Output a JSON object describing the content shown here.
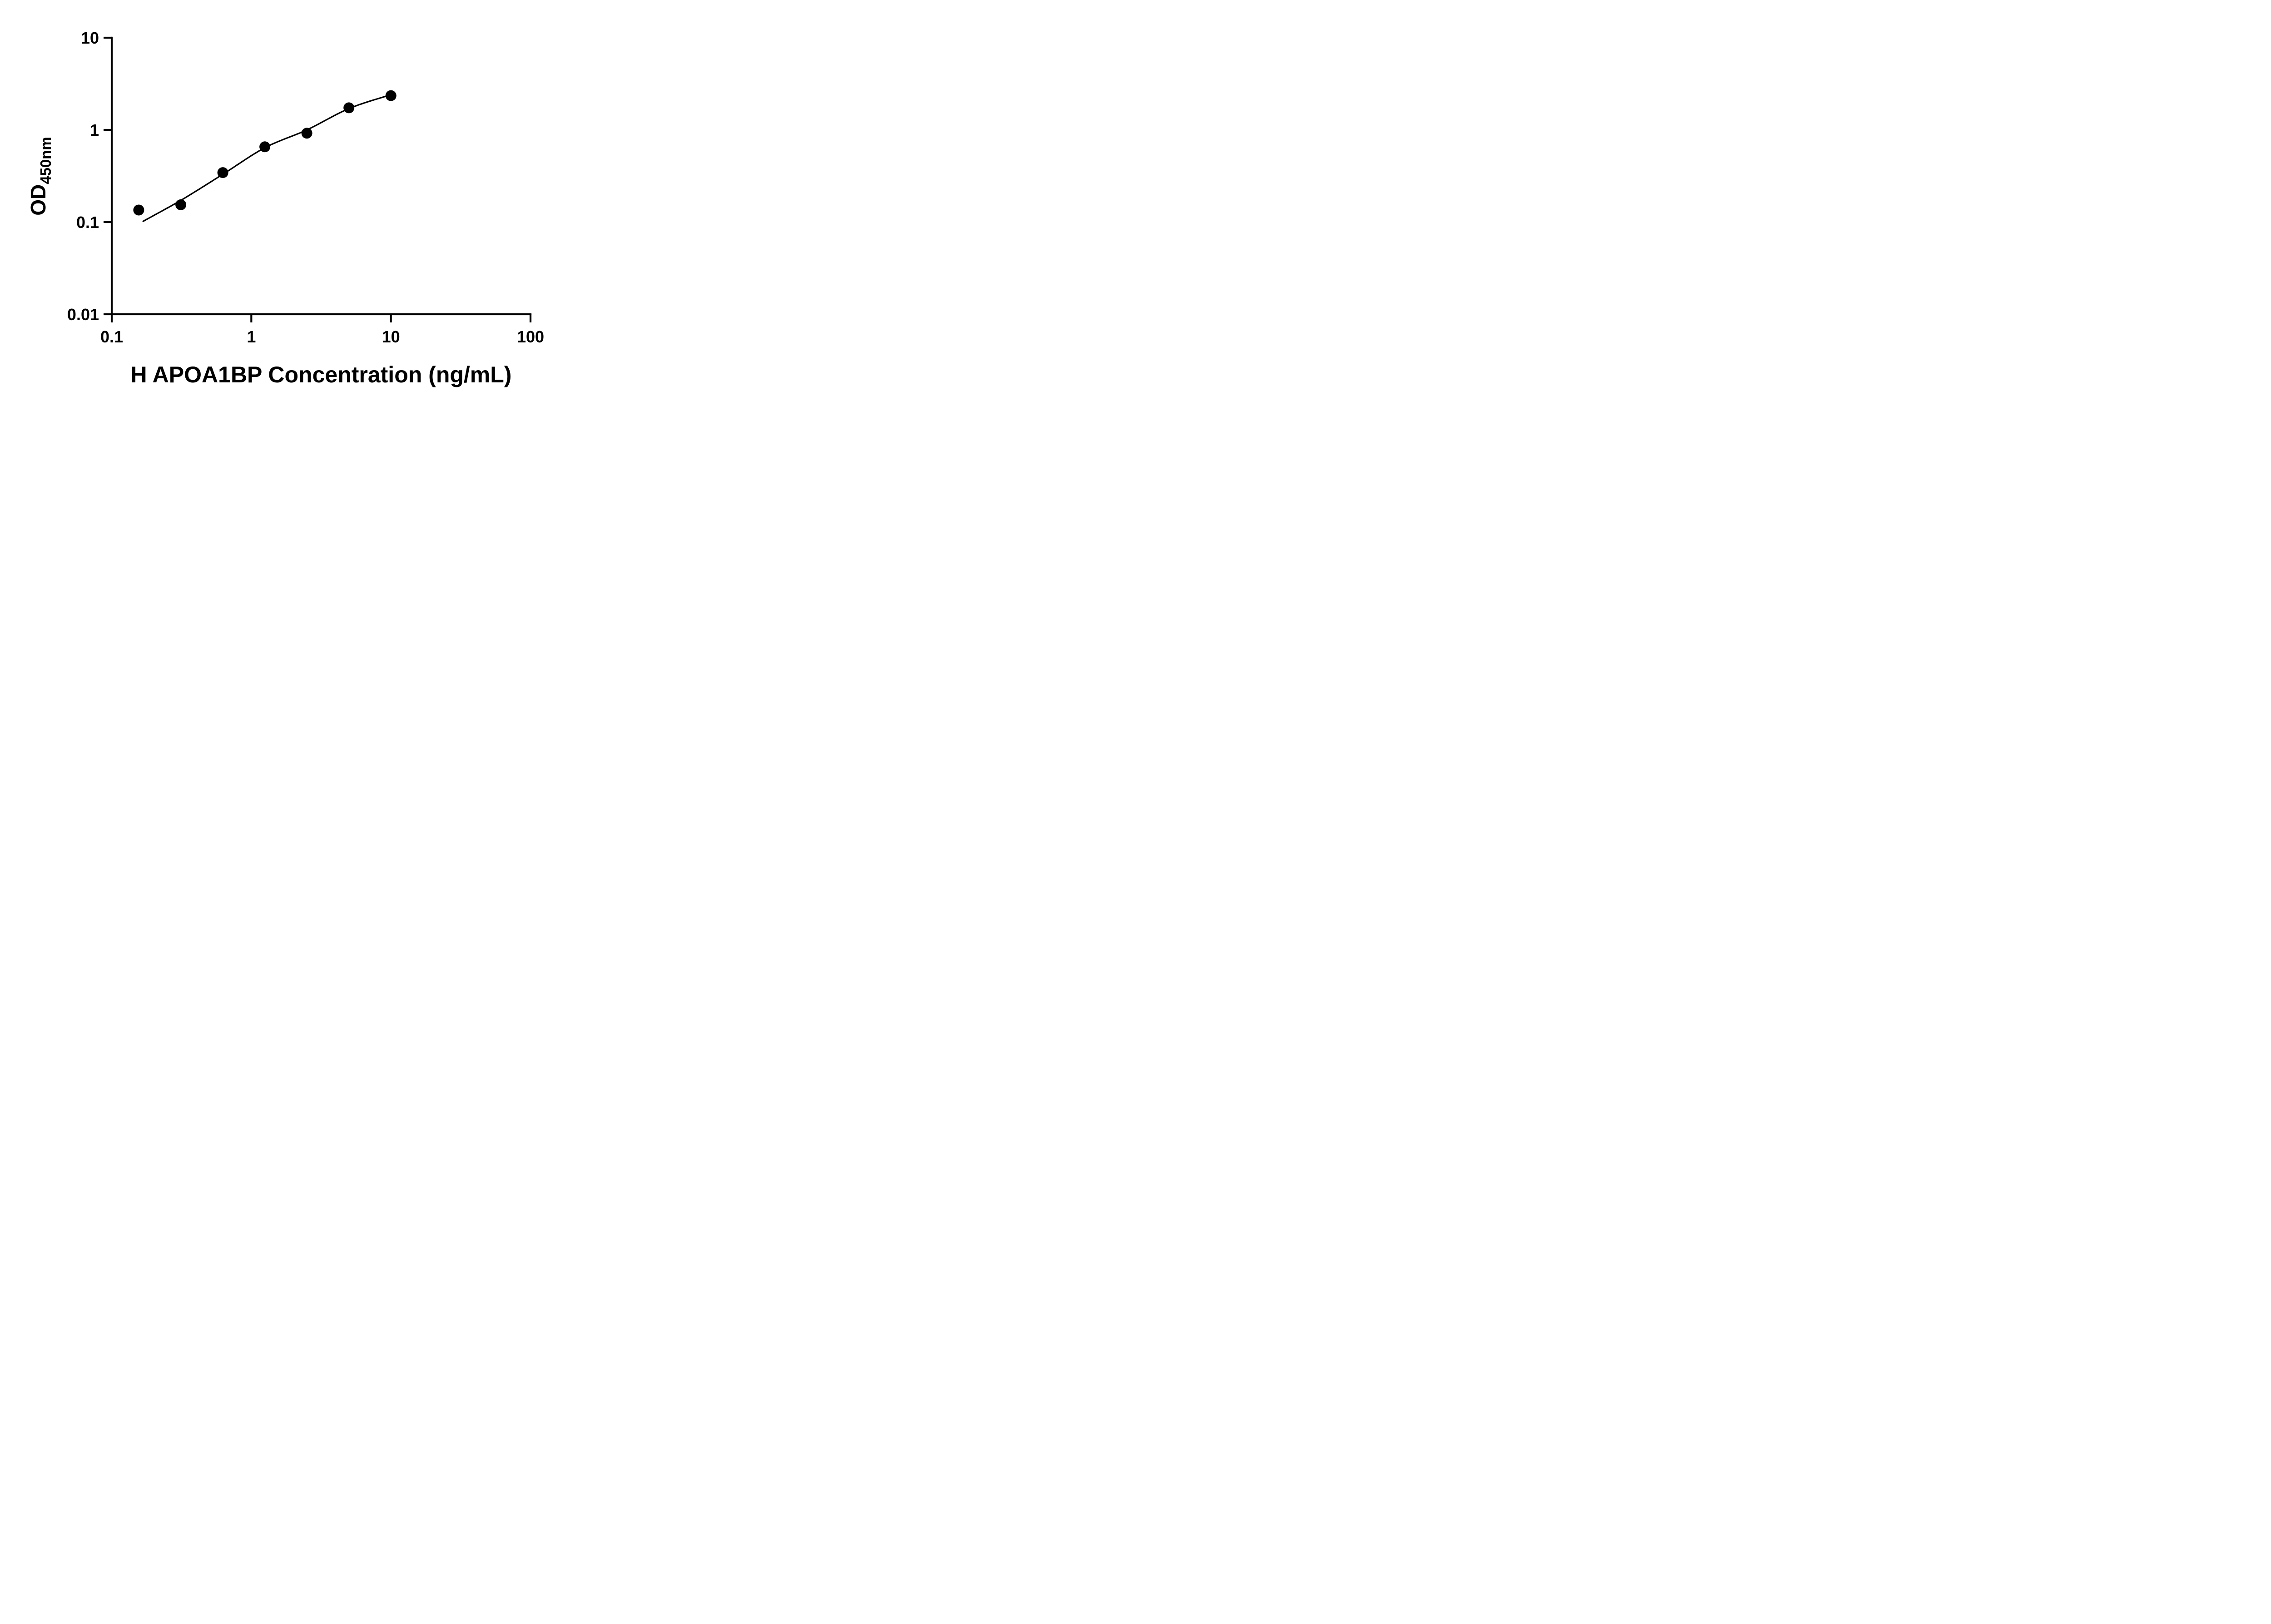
{
  "page": {
    "background_color": "#ffffff",
    "foreground_color": "#000000"
  },
  "chart_data": {
    "type": "scatter",
    "title": "",
    "xlabel": "H APOA1BP Concentration (ng/mL)",
    "ylabel": "OD450nm",
    "ylabel_main": "OD",
    "ylabel_sub": "450nm",
    "x_scale": "log10",
    "y_scale": "log10",
    "xlim": [
      0.1,
      100
    ],
    "ylim": [
      0.01,
      10
    ],
    "grid": false,
    "legend": null,
    "x_ticks": [
      {
        "v": 0.1,
        "label": "0.1"
      },
      {
        "v": 1,
        "label": "1"
      },
      {
        "v": 10,
        "label": "10"
      },
      {
        "v": 100,
        "label": "100"
      }
    ],
    "y_ticks": [
      {
        "v": 10,
        "label": "10"
      },
      {
        "v": 1,
        "label": "1"
      },
      {
        "v": 0.1,
        "label": "0.1"
      },
      {
        "v": 0.01,
        "label": "0.01"
      }
    ],
    "series": [
      {
        "marker": "circle",
        "color": "#000000",
        "points": [
          {
            "x": 0.156,
            "y": 0.135
          },
          {
            "x": 0.3125,
            "y": 0.154
          },
          {
            "x": 0.625,
            "y": 0.344
          },
          {
            "x": 1.25,
            "y": 0.655
          },
          {
            "x": 2.5,
            "y": 0.921
          },
          {
            "x": 5,
            "y": 1.736
          },
          {
            "x": 10,
            "y": 2.351
          }
        ]
      }
    ],
    "fit_curve": {
      "color": "#000000",
      "anchors": [
        {
          "x": 0.168,
          "y": 0.102
        },
        {
          "x": 0.3125,
          "y": 0.172
        },
        {
          "x": 0.625,
          "y": 0.33
        },
        {
          "x": 1.25,
          "y": 0.64
        },
        {
          "x": 2.5,
          "y": 1.0
        },
        {
          "x": 5,
          "y": 1.7
        },
        {
          "x": 10.7,
          "y": 2.49
        }
      ]
    }
  }
}
